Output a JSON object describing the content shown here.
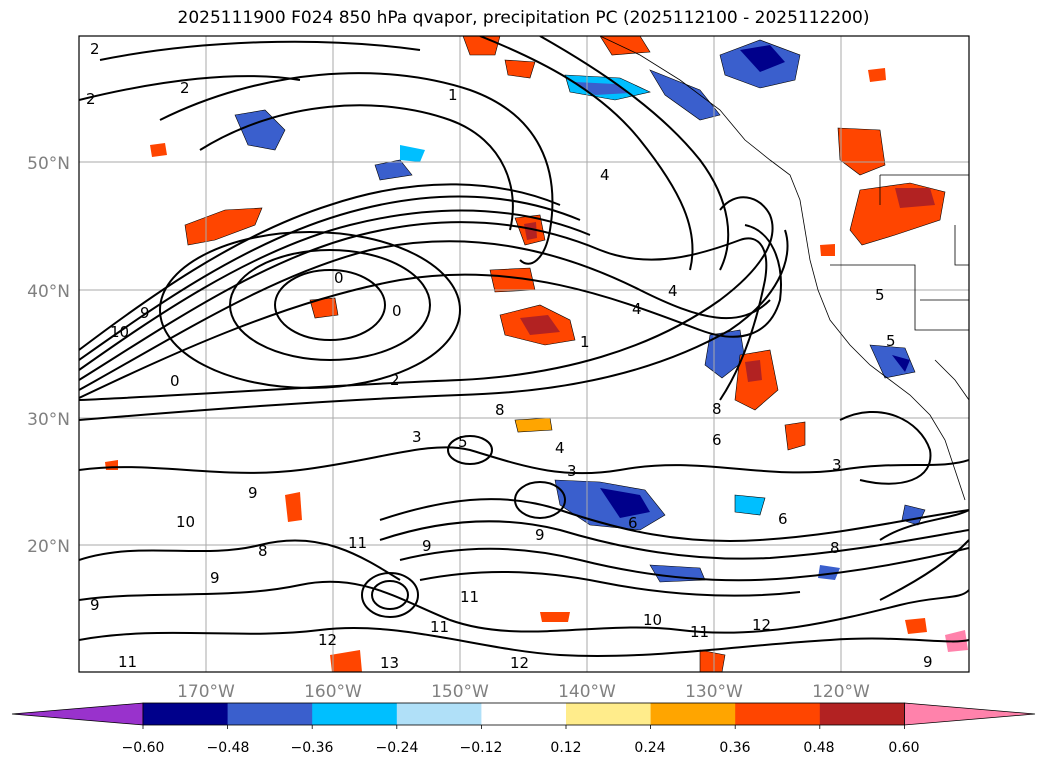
{
  "title": "2025111900 F024 850 hPa qvapor, precipitation PC (2025112100 - 2025112200)",
  "map": {
    "lon_labels": [
      "170°W",
      "160°W",
      "150°W",
      "140°W",
      "130°W",
      "120°W"
    ],
    "lat_labels": [
      "50°N",
      "40°N",
      "30°N",
      "20°N"
    ],
    "contour_labels": [
      "2",
      "2",
      "2",
      "1",
      "4",
      "4",
      "4",
      "1",
      "0",
      "0",
      "0",
      "10",
      "9",
      "2",
      "8",
      "3",
      "5",
      "4",
      "3",
      "8",
      "9",
      "6",
      "6",
      "6",
      "3",
      "9",
      "10",
      "8",
      "11",
      "9",
      "9",
      "11",
      "11",
      "9",
      "12",
      "10",
      "11",
      "12",
      "13",
      "12",
      "11",
      "8",
      "5",
      "5",
      "9"
    ]
  },
  "colorbar": {
    "tick_labels": [
      "−0.60",
      "−0.48",
      "−0.36",
      "−0.24",
      "−0.12",
      "0.12",
      "0.24",
      "0.36",
      "0.48",
      "0.60"
    ],
    "colors": [
      "#9932cc",
      "#00008b",
      "#3a5fcd",
      "#00bfff",
      "#b0e0f8",
      "#ffffff",
      "#ffec8b",
      "#ffa500",
      "#ff4500",
      "#b22222",
      "#ff82ab"
    ]
  }
}
